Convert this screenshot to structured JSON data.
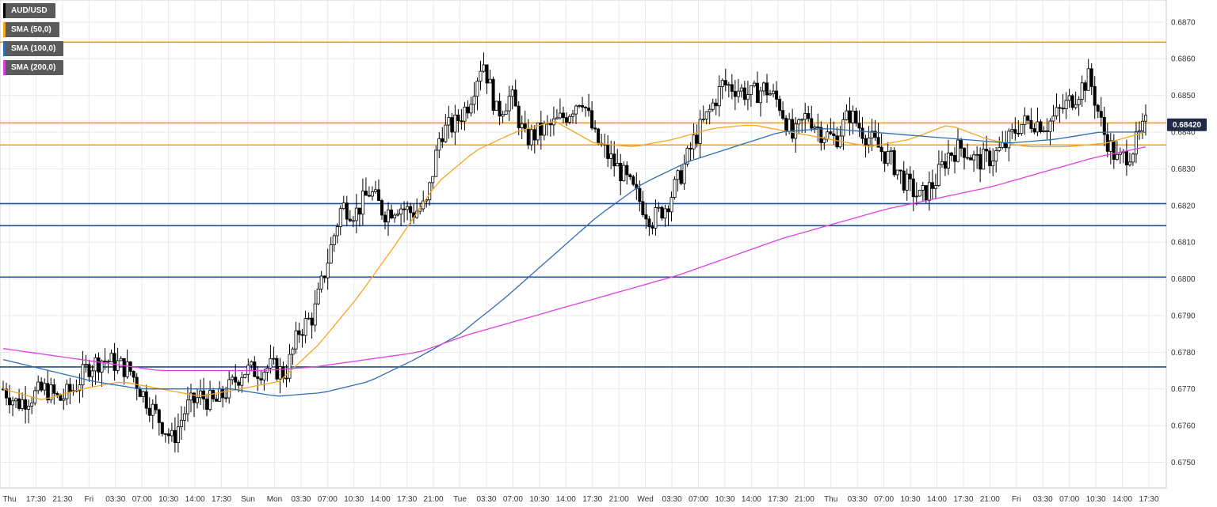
{
  "legend": [
    {
      "label": "AUD/USD",
      "color": "#000000"
    },
    {
      "label": "SMA (50,0)",
      "color": "#f5a623"
    },
    {
      "label": "SMA (100,0)",
      "color": "#2e6db4"
    },
    {
      "label": "SMA (200,0)",
      "color": "#e040e0"
    }
  ],
  "last_price": "0.68420",
  "colors": {
    "grid": "#e8e8ee",
    "axis": "#c8c8d0",
    "candle_up": "#ffffff",
    "candle_down": "#000000",
    "wick": "#000000",
    "resistance": "#f39c12",
    "support": "#1f4e8c",
    "sma50": "#f5a623",
    "sma100": "#2e6db4",
    "sma200": "#e040e0",
    "badge_bg": "#1f2a44"
  },
  "chart_data": {
    "type": "candlestick",
    "symbol": "AUD/USD",
    "ylim": [
      0.6743,
      0.6876
    ],
    "grid": true,
    "legend_position": "top-left",
    "y_ticks": [
      "0.6750",
      "0.6760",
      "0.6770",
      "0.6780",
      "0.6790",
      "0.6800",
      "0.6810",
      "0.6820",
      "0.6830",
      "0.6840",
      "0.6850",
      "0.6860",
      "0.6870"
    ],
    "x_ticks": [
      "Thu",
      "17:30",
      "21:30",
      "Fri",
      "03:30",
      "07:00",
      "10:30",
      "14:00",
      "17:30",
      "Sun",
      "Mon",
      "03:30",
      "07:00",
      "10:30",
      "14:00",
      "17:30",
      "21:00",
      "Tue",
      "03:30",
      "07:00",
      "10:30",
      "14:00",
      "17:30",
      "21:00",
      "Wed",
      "03:30",
      "07:00",
      "10:30",
      "14:00",
      "17:30",
      "21:00",
      "Thu",
      "03:30",
      "07:00",
      "10:30",
      "14:00",
      "17:30",
      "21:00",
      "Fri",
      "03:30",
      "07:00",
      "10:30",
      "14:00",
      "17:30"
    ],
    "horizontal_levels": [
      {
        "value": 0.68645,
        "kind": "resistance"
      },
      {
        "value": 0.68425,
        "kind": "resistance"
      },
      {
        "value": 0.68365,
        "kind": "resistance"
      },
      {
        "value": 0.68205,
        "kind": "support"
      },
      {
        "value": 0.68145,
        "kind": "support"
      },
      {
        "value": 0.68005,
        "kind": "support"
      },
      {
        "value": 0.6776,
        "kind": "support"
      }
    ],
    "price_path": [
      0.677,
      0.6766,
      0.6768,
      0.677,
      0.6767,
      0.677,
      0.6776,
      0.6778,
      0.6777,
      0.6775,
      0.6768,
      0.6762,
      0.6756,
      0.6765,
      0.6768,
      0.6766,
      0.677,
      0.6775,
      0.6775,
      0.6776,
      0.6774,
      0.6786,
      0.679,
      0.6805,
      0.682,
      0.6818,
      0.6824,
      0.6818,
      0.682,
      0.6818,
      0.682,
      0.684,
      0.6842,
      0.6848,
      0.686,
      0.6845,
      0.685,
      0.6838,
      0.684,
      0.6842,
      0.6845,
      0.685,
      0.6838,
      0.6833,
      0.6828,
      0.6822,
      0.6816,
      0.682,
      0.6828,
      0.6838,
      0.6845,
      0.6853,
      0.6852,
      0.685,
      0.6852,
      0.6848,
      0.6838,
      0.6845,
      0.684,
      0.6838,
      0.6845,
      0.684,
      0.6836,
      0.6832,
      0.6826,
      0.6822,
      0.6826,
      0.6834,
      0.6836,
      0.6832,
      0.6833,
      0.6836,
      0.6842,
      0.6843,
      0.6842,
      0.6846,
      0.685,
      0.6855,
      0.684,
      0.6832,
      0.6835,
      0.6842
    ],
    "series": [
      {
        "name": "SMA (50,0)",
        "values": [
          0.677,
          0.6767,
          0.677,
          0.6772,
          0.677,
          0.6768,
          0.677,
          0.6772,
          0.6782,
          0.6795,
          0.681,
          0.6826,
          0.6835,
          0.684,
          0.6843,
          0.6837,
          0.6836,
          0.6838,
          0.6841,
          0.6842,
          0.684,
          0.6838,
          0.6836,
          0.6838,
          0.6842,
          0.6838,
          0.6836,
          0.6836,
          0.6837,
          0.684
        ]
      },
      {
        "name": "SMA (100,0)",
        "values": [
          0.6778,
          0.6775,
          0.6772,
          0.677,
          0.677,
          0.677,
          0.6768,
          0.6769,
          0.6772,
          0.6778,
          0.6785,
          0.6795,
          0.6806,
          0.6817,
          0.6826,
          0.6832,
          0.6836,
          0.684,
          0.6841,
          0.684,
          0.6839,
          0.6838,
          0.6837,
          0.6838,
          0.684,
          0.684
        ]
      },
      {
        "name": "SMA (200,0)",
        "values": [
          0.6781,
          0.6779,
          0.6777,
          0.6775,
          0.6775,
          0.6775,
          0.6776,
          0.6778,
          0.678,
          0.6785,
          0.6789,
          0.6793,
          0.6797,
          0.6801,
          0.6806,
          0.6811,
          0.6815,
          0.6819,
          0.6822,
          0.6825,
          0.6829,
          0.6833,
          0.6836
        ]
      }
    ]
  }
}
